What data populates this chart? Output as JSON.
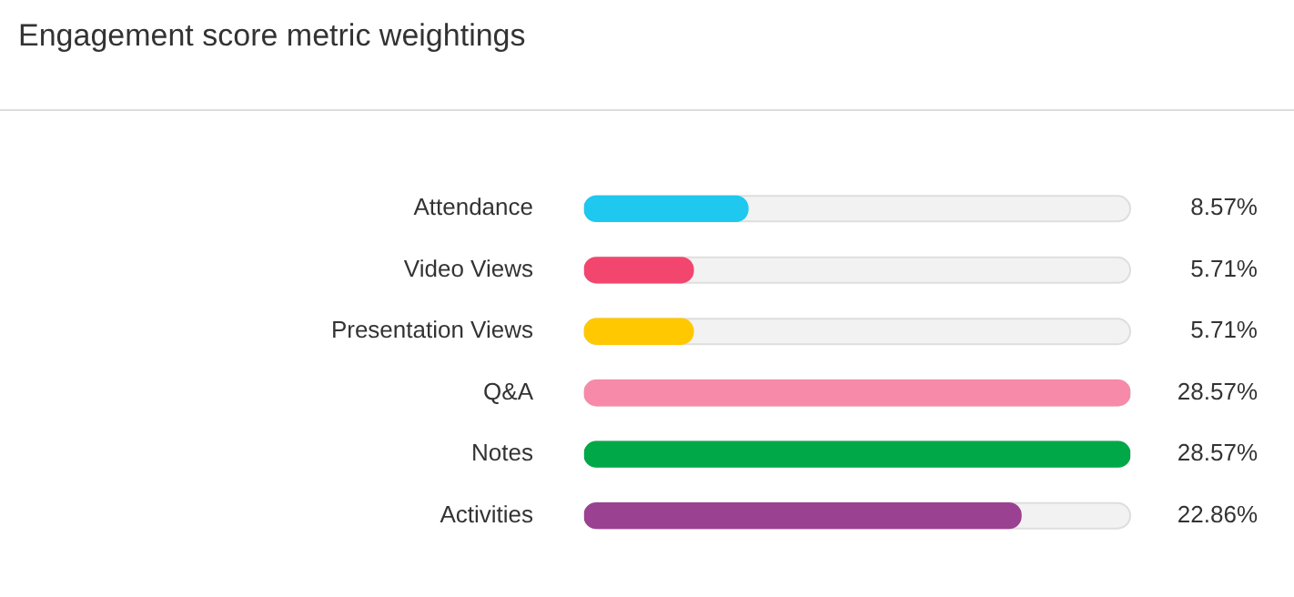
{
  "chart_data": {
    "type": "bar",
    "orientation": "horizontal",
    "title": "Engagement score metric weightings",
    "categories": [
      "Attendance",
      "Video Views",
      "Presentation Views",
      "Q&A",
      "Notes",
      "Activities"
    ],
    "values": [
      8.57,
      5.71,
      5.71,
      28.57,
      28.57,
      22.86
    ],
    "colors": [
      "#1ec8ee",
      "#f2466f",
      "#ffc800",
      "#f78aa8",
      "#00a847",
      "#9b4192"
    ],
    "value_labels": [
      "8.57%",
      "5.71%",
      "5.71%",
      "28.57%",
      "28.57%",
      "22.86%"
    ],
    "xlim": [
      0,
      28.57
    ],
    "tick_labels": "y",
    "legend": false
  }
}
